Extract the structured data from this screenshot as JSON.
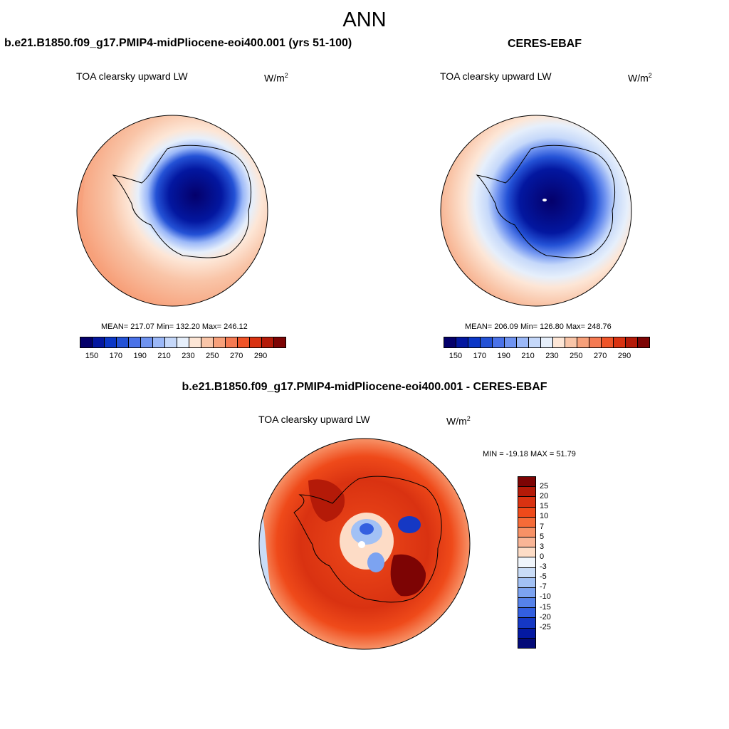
{
  "figure": {
    "title": "ANN",
    "case_title": "b.e21.B1850.f09_g17.PMIP4-midPliocene-eoi400.001 (yrs 51-100)",
    "obs_title": "CERES-EBAF",
    "diff_title": "b.e21.B1850.f09_g17.PMIP4-midPliocene-eoi400.001 - CERES-EBAF"
  },
  "panels": {
    "case": {
      "variable": "TOA clearsky upward LW",
      "units_base": "W/m",
      "units_exp": "2",
      "stats": "MEAN= 217.07  Min= 132.20  Max= 246.12",
      "mean": 217.07,
      "min": 132.2,
      "max": 246.12
    },
    "obs": {
      "variable": "TOA clearsky upward LW",
      "units_base": "W/m",
      "units_exp": "2",
      "stats": "MEAN= 206.09  Min= 126.80  Max= 248.76",
      "mean": 206.09,
      "min": 126.8,
      "max": 248.76
    },
    "diff": {
      "variable": "TOA clearsky upward LW",
      "units_base": "W/m",
      "units_exp": "2",
      "stats": "MIN = -19.18 MAX =  51.79",
      "min": -19.18,
      "max": 51.79
    }
  },
  "colorbars": {
    "abs": {
      "colors": [
        "#04006b",
        "#0317a0",
        "#0b37c7",
        "#2452d6",
        "#4a72e8",
        "#6f93f0",
        "#9bb8f8",
        "#c5d8fa",
        "#e6effb",
        "#fde6d6",
        "#f9c5a8",
        "#f7a07a",
        "#f57a52",
        "#ef5428",
        "#d93211",
        "#b41a08",
        "#7d0404"
      ],
      "ticks": [
        "150",
        "170",
        "190",
        "210",
        "230",
        "250",
        "270",
        "290"
      ]
    },
    "diff": {
      "colors": [
        "#7d0404",
        "#b41a08",
        "#d93211",
        "#ef4a1a",
        "#f56b38",
        "#f79166",
        "#f9b596",
        "#fddcc6",
        "#f0f5fb",
        "#c9dcf7",
        "#a2c1f5",
        "#7ca3f1",
        "#5682ea",
        "#335fe0",
        "#1538c4",
        "#0419a2",
        "#040b78"
      ],
      "ticks": [
        "25",
        "20",
        "15",
        "10",
        "7",
        "5",
        "3",
        "0",
        "-3",
        "-5",
        "-7",
        "-10",
        "-15",
        "-20",
        "-25"
      ]
    }
  }
}
